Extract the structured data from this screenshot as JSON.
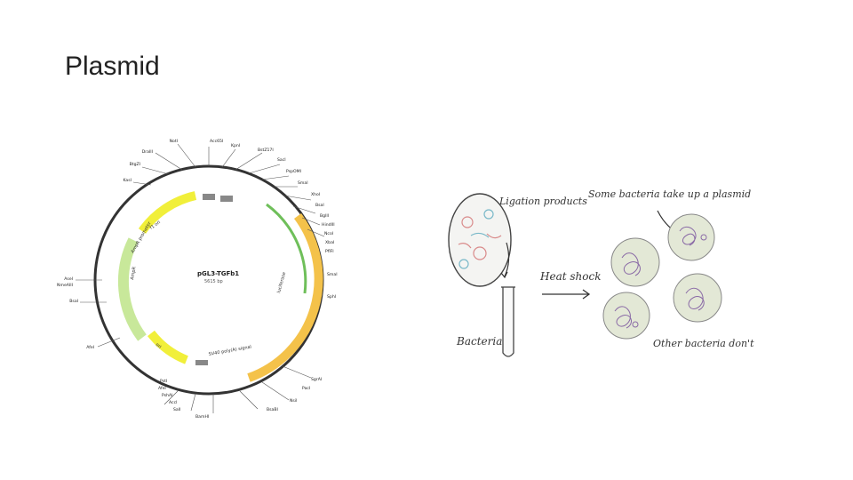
{
  "slide": {
    "title": "Plasmid"
  },
  "plasmid_map": {
    "name": "pGL3-TGFb1",
    "size": "5615 bp",
    "features": [
      {
        "label": "f1 ori",
        "color": "#f1ef3a"
      },
      {
        "label": "AmpR promoter",
        "color": "#c8e89a"
      },
      {
        "label": "AmpR",
        "color": "#c8e89a"
      },
      {
        "label": "ori",
        "color": "#f1ef3a"
      },
      {
        "label": "luciferase",
        "color": "#f4c24a"
      },
      {
        "label": "SV40 poly(A) signal",
        "color": "#cfcfcf"
      }
    ],
    "sites_top": [
      "Acc65I",
      "KpnI",
      "BstZ17I",
      "SacI",
      "PspOMI",
      "SmaI",
      "XhoI",
      "BsaI",
      "BglII",
      "HindIII",
      "NcoI",
      "XbaI",
      "PflFI"
    ],
    "sites_left": [
      "NotI",
      "DraIII",
      "BtgZI",
      "KasI",
      "AseI",
      "NmeAIII",
      "BsaI",
      "AfeI"
    ],
    "sites_right": [
      "SmaI",
      "SphI",
      "SgrAI",
      "PacI",
      "NsiI",
      "BsaBI",
      "BamHI",
      "SalI",
      "AccI",
      "PshAI",
      "AfeI",
      "PstI"
    ]
  },
  "transformation": {
    "ligation_label": "Ligation products",
    "bacteria_label": "Bacteria",
    "heat_shock_label": "Heat shock",
    "uptake_label": "Some bacteria take up a plasmid",
    "nonuptake_label": "Other bacteria don't"
  }
}
